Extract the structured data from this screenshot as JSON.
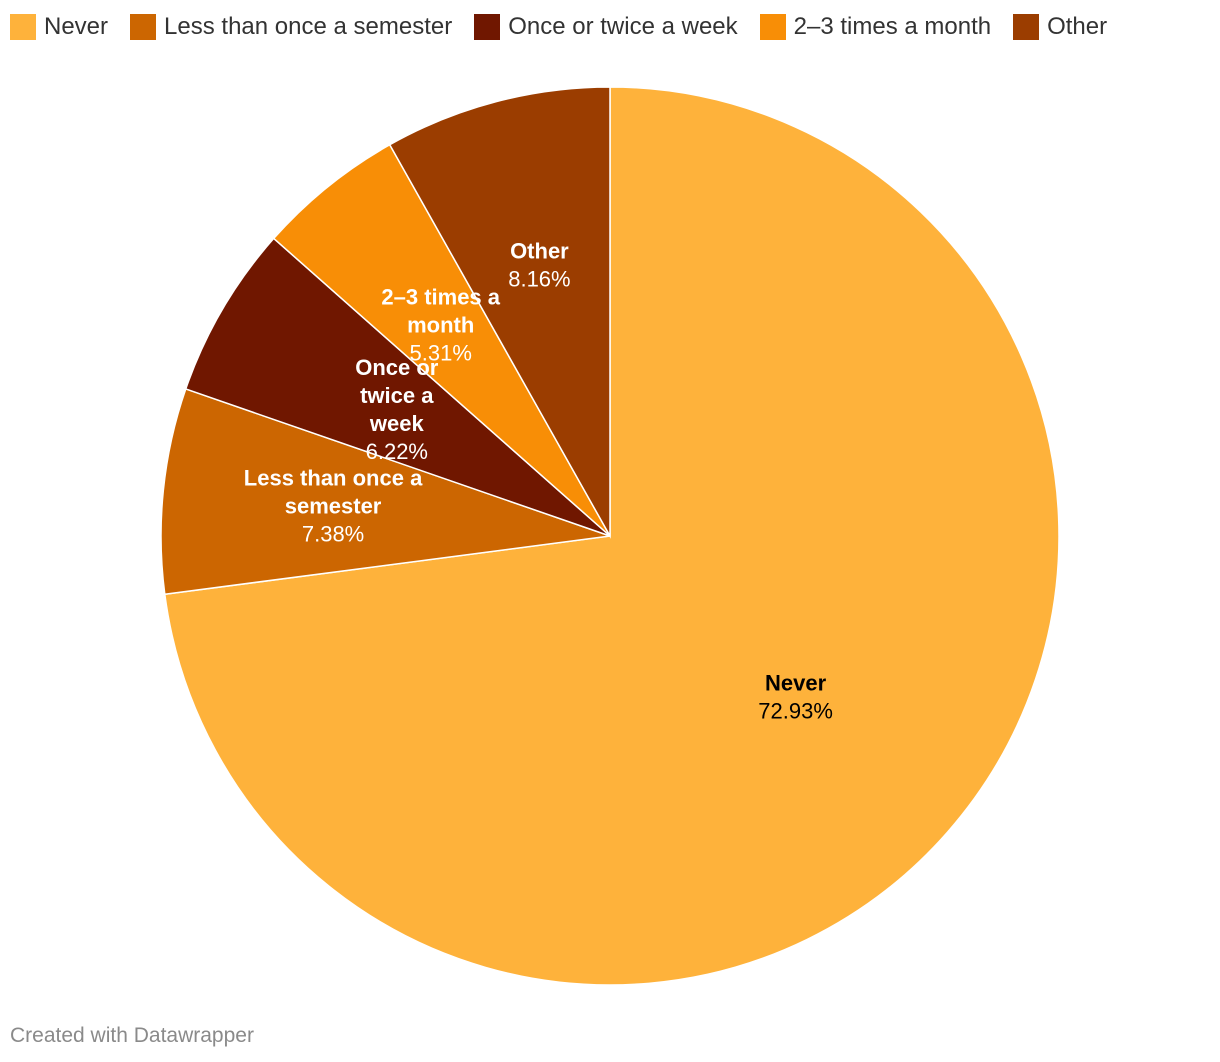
{
  "chart_data": {
    "type": "pie",
    "slices": [
      {
        "name": "Never",
        "value": 72.93,
        "label": "72.93%",
        "color": "#feb23b",
        "text_color": "#000000",
        "lines": [
          "Never"
        ]
      },
      {
        "name": "Less than once a semester",
        "value": 7.38,
        "label": "7.38%",
        "color": "#cc6601",
        "text_color": "#ffffff",
        "lines": [
          "Less than once a",
          "semester"
        ]
      },
      {
        "name": "Once or twice a week",
        "value": 6.22,
        "label": "6.22%",
        "color": "#701700",
        "text_color": "#ffffff",
        "lines": [
          "Once or",
          "twice a",
          "week"
        ]
      },
      {
        "name": "2–3 times a month",
        "value": 5.31,
        "label": "5.31%",
        "color": "#f88e06",
        "text_color": "#ffffff",
        "lines": [
          "2–3 times a",
          "month"
        ]
      },
      {
        "name": "Other",
        "value": 8.16,
        "label": "8.16%",
        "color": "#9b3d00",
        "text_color": "#ffffff",
        "lines": [
          "Other"
        ]
      }
    ],
    "legend_placement": "top-left"
  },
  "footer": {
    "credit": "Created with Datawrapper"
  }
}
